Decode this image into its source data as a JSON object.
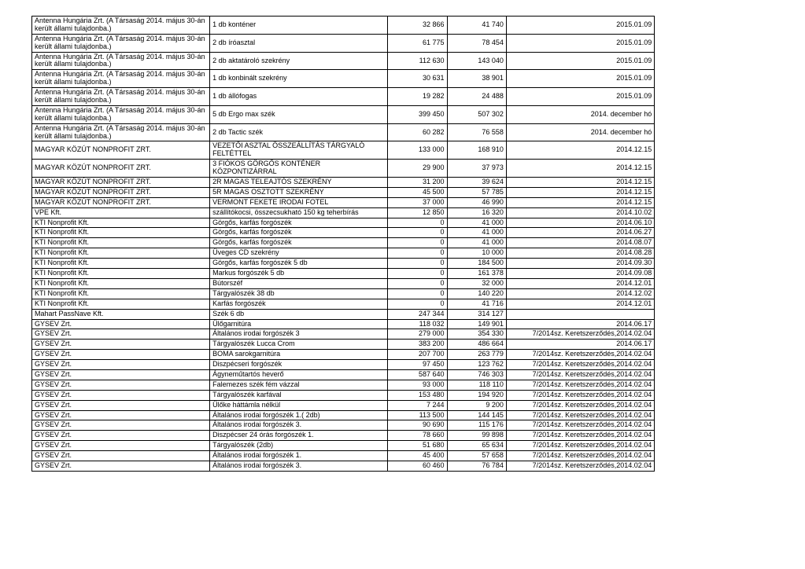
{
  "rows": [
    {
      "company": "Antenna Hungária Zrt. (A Társaság 2014. május 30-án került állami tulajdonba.)",
      "desc": "1 db konténer",
      "v1": "32 866",
      "v2": "41 740",
      "date": "2015.01.09"
    },
    {
      "company": "Antenna Hungária Zrt. (A Társaság 2014. május 30-án került állami tulajdonba.)",
      "desc": "2 db íróasztal",
      "v1": "61 775",
      "v2": "78 454",
      "date": "2015.01.09"
    },
    {
      "company": "Antenna Hungária Zrt. (A Társaság 2014. május 30-án került állami tulajdonba.)",
      "desc": "2 db aktatároló szekrény",
      "v1": "112 630",
      "v2": "143 040",
      "date": "2015.01.09"
    },
    {
      "company": "Antenna Hungária Zrt. (A Társaság 2014. május 30-án került állami tulajdonba.)",
      "desc": "1 db konbinált szekrény",
      "v1": "30 631",
      "v2": "38 901",
      "date": "2015.01.09"
    },
    {
      "company": "Antenna Hungária Zrt. (A Társaság 2014. május 30-án került állami tulajdonba.)",
      "desc": "1 db állófogas",
      "v1": "19 282",
      "v2": "24 488",
      "date": "2015.01.09"
    },
    {
      "company": "Antenna Hungária Zrt. (A Társaság 2014. május 30-án került állami tulajdonba.)",
      "desc": "5 db Ergo max szék",
      "v1": "399 450",
      "v2": "507 302",
      "date": "2014. december hó"
    },
    {
      "company": "Antenna Hungária Zrt. (A Társaság 2014. május 30-án került állami tulajdonba.)",
      "desc": "2 db Tactic szék",
      "v1": "60 282",
      "v2": "76 558",
      "date": "2014. december hó"
    },
    {
      "company": "MAGYAR KÖZÚT NONPROFIT ZRT.",
      "desc": "VEZETŐI ASZTAL ÖSSZEÁLLÍTÁS TÁRGYALÓ FELTÉTTEL",
      "v1": "133 000",
      "v2": "168 910",
      "date": "2014.12.15"
    },
    {
      "company": "MAGYAR KÖZÚT NONPROFIT ZRT.",
      "desc": "3 FIÓKOS GÖRGŐS KONTÉNER KÖZPONTIZÁRRAL",
      "v1": "29 900",
      "v2": "37 973",
      "date": "2014.12.15"
    },
    {
      "company": "MAGYAR KÖZÚT NONPROFIT ZRT.",
      "desc": "2R MAGAS TELEAJTÓS SZEKRÉNY",
      "v1": "31 200",
      "v2": "39 624",
      "date": "2014.12.15"
    },
    {
      "company": "MAGYAR KÖZÚT NONPROFIT ZRT.",
      "desc": "5R MAGAS OSZTOTT SZEKRÉNY",
      "v1": "45 500",
      "v2": "57 785",
      "date": "2014.12.15"
    },
    {
      "company": "MAGYAR KÖZÚT NONPROFIT ZRT.",
      "desc": "VERMONT FEKETE IRODAI FOTEL",
      "v1": "37 000",
      "v2": "46 990",
      "date": "2014.12.15"
    },
    {
      "company": "VPE Kft.",
      "desc": "szállítókocsi, összecsukható 150 kg teherbírás",
      "v1": "12 850",
      "v2": "16 320",
      "date": "2014.10.02"
    },
    {
      "company": "KTI Nonprofit Kft.",
      "desc": "Görgős, karfás forgószék",
      "v1": "0",
      "v2": "41 000",
      "date": "2014.06.10"
    },
    {
      "company": "KTI Nonprofit Kft.",
      "desc": "Görgős, karfás forgószék",
      "v1": "0",
      "v2": "41 000",
      "date": "2014.06.27"
    },
    {
      "company": "KTI Nonprofit Kft.",
      "desc": "Görgős, karfás forgószék",
      "v1": "0",
      "v2": "41 000",
      "date": "2014.08.07"
    },
    {
      "company": "KTI Nonprofit Kft.",
      "desc": "Üveges CD szekrény",
      "v1": "0",
      "v2": "10 000",
      "date": "2014.08.28"
    },
    {
      "company": "KTI Nonprofit Kft.",
      "desc": "Görgős, karfás forgószék 5 db",
      "v1": "0",
      "v2": "184 500",
      "date": "2014.09.30"
    },
    {
      "company": "KTI Nonprofit Kft.",
      "desc": "Markus forgószék 5 db",
      "v1": "0",
      "v2": "161 378",
      "date": "2014.09.08"
    },
    {
      "company": "KTI Nonprofit Kft.",
      "desc": "Bútorszéf",
      "v1": "0",
      "v2": "32 000",
      "date": "2014.12.01"
    },
    {
      "company": "KTI Nonprofit Kft.",
      "desc": "Tárgyalószék 38 db",
      "v1": "0",
      "v2": "140 220",
      "date": "2014.12.02"
    },
    {
      "company": "KTI Nonprofit Kft.",
      "desc": "Karfás forgószék",
      "v1": "0",
      "v2": "41 716",
      "date": "2014.12.01"
    },
    {
      "company": "Mahart PassNave Kft.",
      "desc": "Szék 6 db",
      "v1": "247 344",
      "v2": "314 127",
      "date": ""
    },
    {
      "company": "GYSEV Zrt.",
      "desc": "Ülőgarnitúra",
      "v1": "118 032",
      "v2": "149 901",
      "date": "2014.06.17"
    },
    {
      "company": "GYSEV Zrt.",
      "desc": "Általános irodai forgószék 3",
      "v1": "279 000",
      "v2": "354 330",
      "date": "7/2014sz. Keretszerződés,2014.02.04"
    },
    {
      "company": "GYSEV Zrt.",
      "desc": "Tárgyalószék Lucca Crom",
      "v1": "383 200",
      "v2": "486 664",
      "date": "2014.06.17"
    },
    {
      "company": "GYSEV Zrt.",
      "desc": "BOMA sarokgarnitúra",
      "v1": "207 700",
      "v2": "263 779",
      "date": "7/2014sz. Keretszerződés,2014.02.04"
    },
    {
      "company": "GYSEV Zrt.",
      "desc": "Diszpécseri forgószék",
      "v1": "97 450",
      "v2": "123 762",
      "date": "7/2014sz. Keretszerződés,2014.02.04"
    },
    {
      "company": "GYSEV Zrt.",
      "desc": "Ágyneműtartós heverő",
      "v1": "587 640",
      "v2": "746 303",
      "date": "7/2014sz. Keretszerződés,2014.02.04"
    },
    {
      "company": "GYSEV Zrt.",
      "desc": "Falemezes szék fém vázzal",
      "v1": "93 000",
      "v2": "118 110",
      "date": "7/2014sz. Keretszerződés,2014.02.04"
    },
    {
      "company": "GYSEV Zrt.",
      "desc": "Tárgyalószék karfával",
      "v1": "153 480",
      "v2": "194 920",
      "date": "7/2014sz. Keretszerződés,2014.02.04"
    },
    {
      "company": "GYSEV Zrt.",
      "desc": "Ülőke háttámla nélkül",
      "v1": "7 244",
      "v2": "9 200",
      "date": "7/2014sz. Keretszerződés,2014.02.04"
    },
    {
      "company": "GYSEV Zrt.",
      "desc": "Általános irodai forgószék 1.( 2db)",
      "v1": "113 500",
      "v2": "144 145",
      "date": "7/2014sz. Keretszerződés,2014.02.04"
    },
    {
      "company": "GYSEV Zrt.",
      "desc": "Általános irodai forgószék 3.",
      "v1": "90 690",
      "v2": "115 176",
      "date": "7/2014sz. Keretszerződés,2014.02.04"
    },
    {
      "company": "GYSEV Zrt.",
      "desc": "Diszpécser 24 órás forgószék 1.",
      "v1": "78 660",
      "v2": "99 898",
      "date": "7/2014sz. Keretszerződés,2014.02.04"
    },
    {
      "company": "GYSEV Zrt.",
      "desc": "Tárgyalószék (2db)",
      "v1": "51 680",
      "v2": "65 634",
      "date": "7/2014sz. Keretszerződés,2014.02.04"
    },
    {
      "company": "GYSEV Zrt.",
      "desc": "Általános irodai forgószék 1.",
      "v1": "45 400",
      "v2": "57 658",
      "date": "7/2014sz. Keretszerződés,2014.02.04"
    },
    {
      "company": "GYSEV Zrt.",
      "desc": "Általános irodai forgószék 3.",
      "v1": "60 460",
      "v2": "76 784",
      "date": "7/2014sz. Keretszerződés,2014.02.04"
    }
  ],
  "columns": [
    "company",
    "desc",
    "v1",
    "v2",
    "date"
  ],
  "font_size": 9,
  "border_color": "#000000",
  "background_color": "#ffffff"
}
